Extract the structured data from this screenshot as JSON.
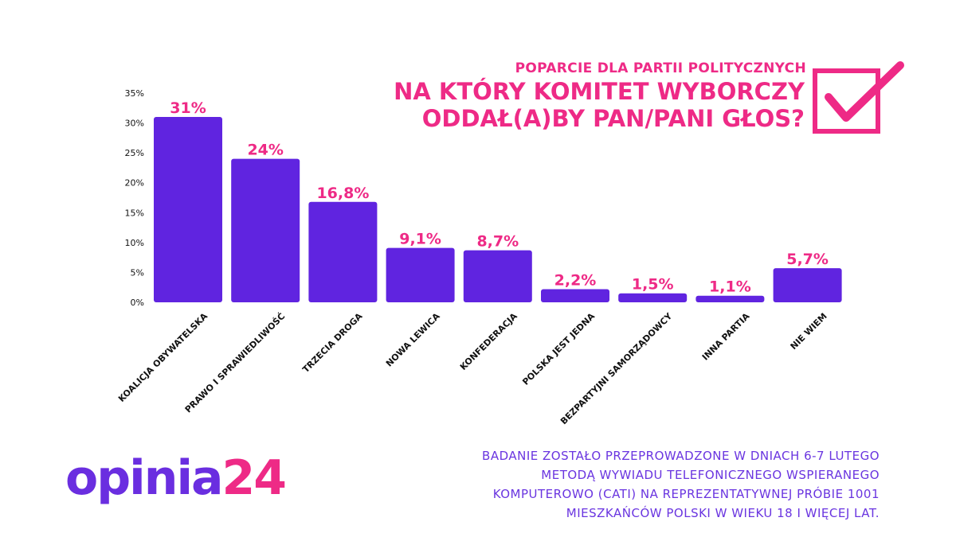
{
  "header": {
    "subtitle": "POPARCIE DLA PARTII POLITYCZNYCH",
    "title_line1": "NA KTÓRY KOMITET WYBORCZY",
    "title_line2": "ODDAŁ(A)BY PAN/PANI GŁOS?"
  },
  "footer": {
    "note_line1": "BADANIE ZOSTAŁO PRZEPROWADZONE W DNIACH 6-7 LUTEGO",
    "note_line2": "METODĄ WYWIADU TELEFONICZNEGO WSPIERANEGO",
    "note_line3": "KOMPUTEROWO (CATI) NA REPREZENTATYWNEJ PRÓBIE 1001",
    "note_line4": "MIESZKAŃCÓW POLSKI W WIEKU 18 I WIĘCEJ LAT."
  },
  "logo": {
    "part1": "opinia",
    "part2": "24"
  },
  "icons": {
    "header_icon": "checkbox-check-icon"
  },
  "colors": {
    "bar": "#6024e0",
    "accent": "#ee2a86",
    "note": "#6a35e0",
    "axis_text": "#111111"
  },
  "chart_data": {
    "type": "bar",
    "categories": [
      "KOALICJA OBYWATELSKA",
      "PRAWO I SPRAWIEDLIWOŚĆ",
      "TRZECIA DROGA",
      "NOWA LEWICA",
      "KONFEDERACJA",
      "POLSKA JEST JEDNA",
      "BEZPARTYJNI SAMORZĄDOWCY",
      "INNA PARTIA",
      "NIE WIEM"
    ],
    "values": [
      31,
      24,
      16.8,
      9.1,
      8.7,
      2.2,
      1.5,
      1.1,
      5.7
    ],
    "data_labels": [
      "31%",
      "24%",
      "16,8%",
      "9,1%",
      "8,7%",
      "2,2%",
      "1,5%",
      "1,1%",
      "5,7%"
    ],
    "yticks": [
      0,
      5,
      10,
      15,
      20,
      25,
      30,
      35
    ],
    "ytick_labels": [
      "0%",
      "5%",
      "10%",
      "15%",
      "20%",
      "25%",
      "30%",
      "35%"
    ],
    "ylim": [
      0,
      35
    ],
    "grid": false,
    "legend": "none"
  }
}
